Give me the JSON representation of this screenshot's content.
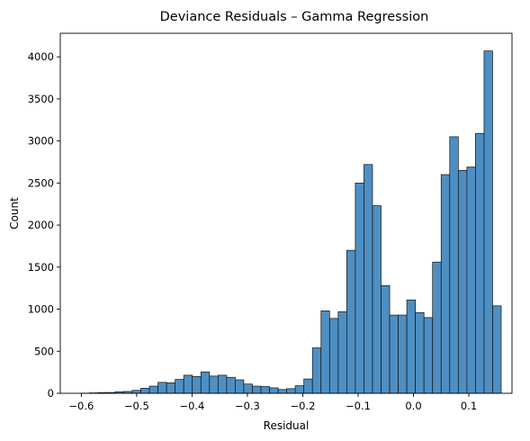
{
  "chart_data": {
    "type": "bar",
    "title": "Deviance Residuals – Gamma Regression",
    "xlabel": "Residual",
    "ylabel": "Count",
    "xlim": [
      -0.638,
      0.178
    ],
    "ylim": [
      0,
      4280
    ],
    "xticks": [
      -0.6,
      -0.5,
      -0.4,
      -0.3,
      -0.2,
      -0.1,
      0.0,
      0.1
    ],
    "xtick_labels": [
      "−0.6",
      "−0.5",
      "−0.4",
      "−0.3",
      "−0.2",
      "−0.1",
      "0.0",
      "0.1"
    ],
    "yticks": [
      0,
      500,
      1000,
      1500,
      2000,
      2500,
      3000,
      3500,
      4000
    ],
    "ytick_labels": [
      "0",
      "500",
      "1000",
      "1500",
      "2000",
      "2500",
      "3000",
      "3500",
      "4000"
    ],
    "bin_start": -0.601,
    "bin_width": 0.0155,
    "values": [
      2,
      5,
      8,
      10,
      18,
      22,
      35,
      60,
      85,
      130,
      125,
      165,
      215,
      200,
      255,
      205,
      215,
      190,
      160,
      110,
      85,
      80,
      65,
      45,
      55,
      90,
      170,
      540,
      980,
      890,
      970,
      1700,
      2500,
      2720,
      2230,
      1280,
      930,
      930,
      1110,
      960,
      900,
      1560,
      2600,
      3050,
      2650,
      2690,
      3090,
      4070,
      1040
    ],
    "grid": false,
    "legend": "none"
  },
  "colors": {
    "bar_fill": "#4e8fc3",
    "bar_edge": "#111111"
  }
}
